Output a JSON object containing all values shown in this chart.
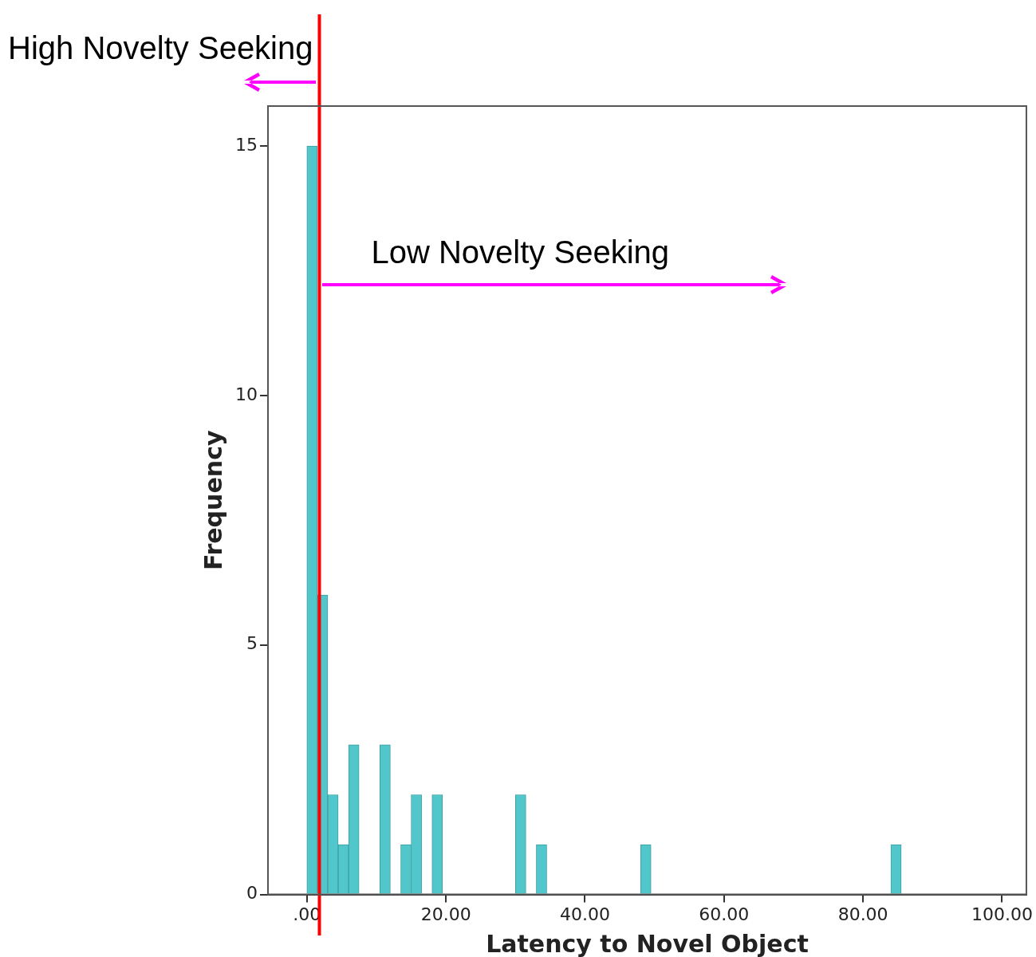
{
  "chart_data": {
    "type": "histogram",
    "xlabel": "Latency to Novel Object",
    "ylabel": "Frequency",
    "bins": [
      0,
      1.5,
      3,
      4.5,
      6,
      7.5,
      9,
      10.5,
      12,
      13.5,
      15,
      16.5,
      18,
      19.5,
      21,
      22.5,
      24,
      25.5,
      27,
      28.5,
      30,
      31.5,
      33,
      34.5,
      36,
      37.5,
      39,
      40.5,
      42,
      43.5,
      45,
      46.5,
      48,
      49.5,
      51,
      52.5,
      54,
      55.5,
      57,
      58.5,
      60,
      61.5,
      63,
      64.5,
      66,
      67.5,
      69,
      70.5,
      72,
      73.5,
      75,
      76.5,
      78,
      79.5,
      81,
      82.5,
      84,
      85.5
    ],
    "values": [
      15,
      6,
      2,
      1,
      3,
      0,
      0,
      3,
      0,
      1,
      2,
      0,
      2,
      0,
      0,
      0,
      0,
      0,
      0,
      0,
      2,
      0,
      1,
      0,
      0,
      0,
      0,
      0,
      0,
      0,
      0,
      0,
      1,
      0,
      0,
      0,
      0,
      0,
      0,
      0,
      0,
      0,
      0,
      0,
      0,
      0,
      0,
      0,
      0,
      0,
      0,
      0,
      0,
      0,
      0,
      0,
      1
    ],
    "color": "#52c7cb",
    "xlim": [
      -5.6,
      103.5
    ],
    "xticks": [
      {
        "value": 0,
        "label": ".00"
      },
      {
        "value": 20,
        "label": "20.00"
      },
      {
        "value": 40,
        "label": "40.00"
      },
      {
        "value": 60,
        "label": "60.00"
      },
      {
        "value": 80,
        "label": "80.00"
      },
      {
        "value": 100,
        "label": "100.00"
      }
    ],
    "ylim": [
      0,
      15.8
    ],
    "yticks": [
      0,
      5,
      10,
      15
    ],
    "grid": false,
    "legend": false,
    "ref_lines": [
      {
        "axis": "x",
        "value": 1.8,
        "color": "#ff0000"
      }
    ],
    "annotations": [
      "High Novelty Seeking",
      "Low Novelty Seeking"
    ]
  }
}
